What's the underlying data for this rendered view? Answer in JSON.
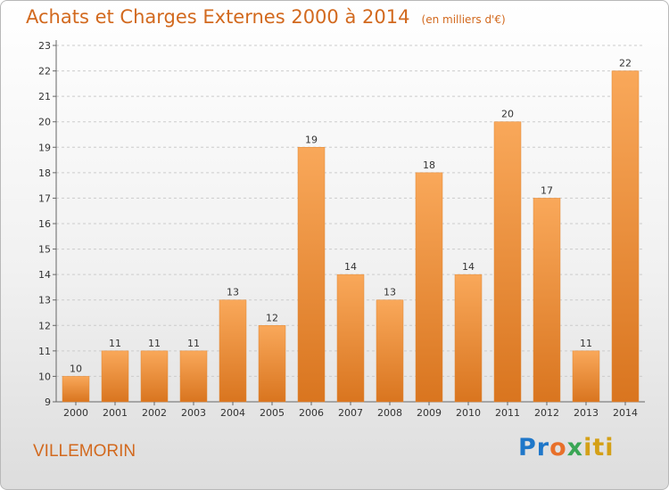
{
  "header": {
    "title": "Achats et Charges Externes 2000 à 2014",
    "unit": "(en milliers d'€)"
  },
  "footer": {
    "commune": "VILLEMORIN",
    "logo_text": "Proxiti"
  },
  "colors": {
    "bar_light": "#f9a85a",
    "bar_dark": "#d9751f",
    "title": "#d2691e",
    "grid": "#cccccc"
  },
  "chart_data": {
    "type": "bar",
    "title": "Achats et Charges Externes 2000 à 2014",
    "subtitle": "(en milliers d'€)",
    "categories": [
      "2000",
      "2001",
      "2002",
      "2003",
      "2004",
      "2005",
      "2006",
      "2007",
      "2008",
      "2009",
      "2010",
      "2011",
      "2012",
      "2013",
      "2014"
    ],
    "values": [
      10,
      11,
      11,
      11,
      13,
      12,
      19,
      14,
      13,
      18,
      14,
      20,
      17,
      11,
      22
    ],
    "data_labels": [
      "10",
      "11",
      "11",
      "11",
      "13",
      "12",
      "19",
      "14",
      "13",
      "18",
      "14",
      "20",
      "17",
      "11",
      "22"
    ],
    "ylim": [
      9,
      23
    ],
    "yticks": [
      9,
      10,
      11,
      12,
      13,
      14,
      15,
      16,
      17,
      18,
      19,
      20,
      21,
      22,
      23
    ],
    "grid": true,
    "legend": "none"
  }
}
